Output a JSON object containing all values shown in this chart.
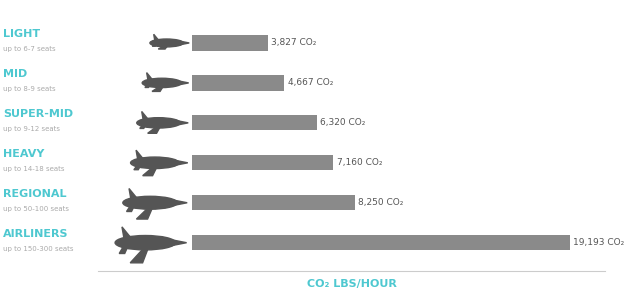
{
  "categories": [
    "LIGHT",
    "MID",
    "SUPER-MID",
    "HEAVY",
    "REGIONAL",
    "AIRLINERS"
  ],
  "subtitles": [
    "up to 6-7 seats",
    "up to 8-9 seats",
    "up to 9-12 seats",
    "up to 14-18 seats",
    "up to 50-100 seats",
    "up to 150-300 seats"
  ],
  "values": [
    3827,
    4667,
    6320,
    7160,
    8250,
    19193
  ],
  "labels": [
    "3,827 CO₂",
    "4,667 CO₂",
    "6,320 CO₂",
    "7,160 CO₂",
    "8,250 CO₂",
    "19,193 CO₂"
  ],
  "bar_color": "#8a8a8a",
  "bar_height": 0.38,
  "label_color": "#555555",
  "category_color": "#4ec8d0",
  "subtitle_color": "#aaaaaa",
  "xlabel": "CO₂ LBS/HOUR",
  "xlabel_color": "#4ec8d0",
  "background_color": "#ffffff",
  "plane_color": "#555555",
  "max_value": 21000,
  "title_fontsize": 8,
  "subtitle_fontsize": 5,
  "label_fontsize": 6.5,
  "xlabel_fontsize": 8,
  "plane_scales": [
    0.55,
    0.65,
    0.72,
    0.8,
    0.9,
    1.0
  ]
}
